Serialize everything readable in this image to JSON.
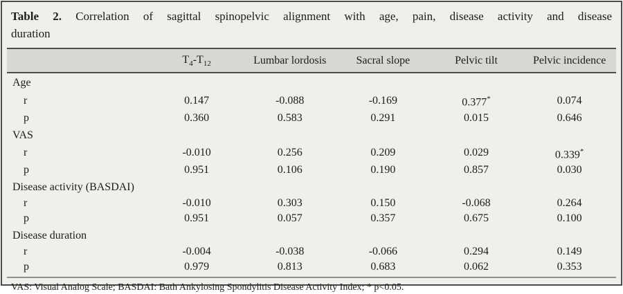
{
  "caption": {
    "label": "Table 2.",
    "line1": "Correlation of sagittal spinopelvic alignment with age, pain, disease activity and disease",
    "line2": "duration"
  },
  "table": {
    "header": {
      "col1": {
        "base1": "T",
        "sub1": "4",
        "base2": "-T",
        "sub2": "12"
      },
      "col2": "Lumbar lordosis",
      "col3": "Sacral slope",
      "col4": "Pelvic tilt",
      "col5": "Pelvic incidence"
    },
    "stat_keys": [
      "r",
      "p"
    ],
    "sections": [
      {
        "label": "Age",
        "r": [
          "0.147",
          "-0.088",
          "-0.169",
          "0.377*",
          "0.074"
        ],
        "p": [
          "0.360",
          "0.583",
          "0.291",
          "0.015",
          "0.646"
        ]
      },
      {
        "label": "VAS",
        "r": [
          "-0.010",
          "0.256",
          "0.209",
          "0.029",
          "0.339*"
        ],
        "p": [
          "0.951",
          "0.106",
          "0.190",
          "0.857",
          "0.030"
        ]
      },
      {
        "label": "Disease activity (BASDAI)",
        "r": [
          "-0.010",
          "0.303",
          "0.150",
          "-0.068",
          "0.264"
        ],
        "p": [
          "0.951",
          "0.057",
          "0.357",
          "0.675",
          "0.100"
        ]
      },
      {
        "label": "Disease duration",
        "r": [
          "-0.004",
          "-0.038",
          "-0.066",
          "0.294",
          "0.149"
        ],
        "p": [
          "0.979",
          "0.813",
          "0.683",
          "0.062",
          "0.353"
        ]
      }
    ]
  },
  "footnote": "VAS: Visual Analog Scale; BASDAI: Bath Ankylosing Spondylitis Disease Activity Index; * p<0.05.",
  "colors": {
    "panel_background": "#f0efec",
    "header_band_background": "#d8d7d3",
    "dark_rule": "#4c4b49",
    "footnote_rule": "#8f8e8a",
    "text": "#1d1c1a"
  }
}
